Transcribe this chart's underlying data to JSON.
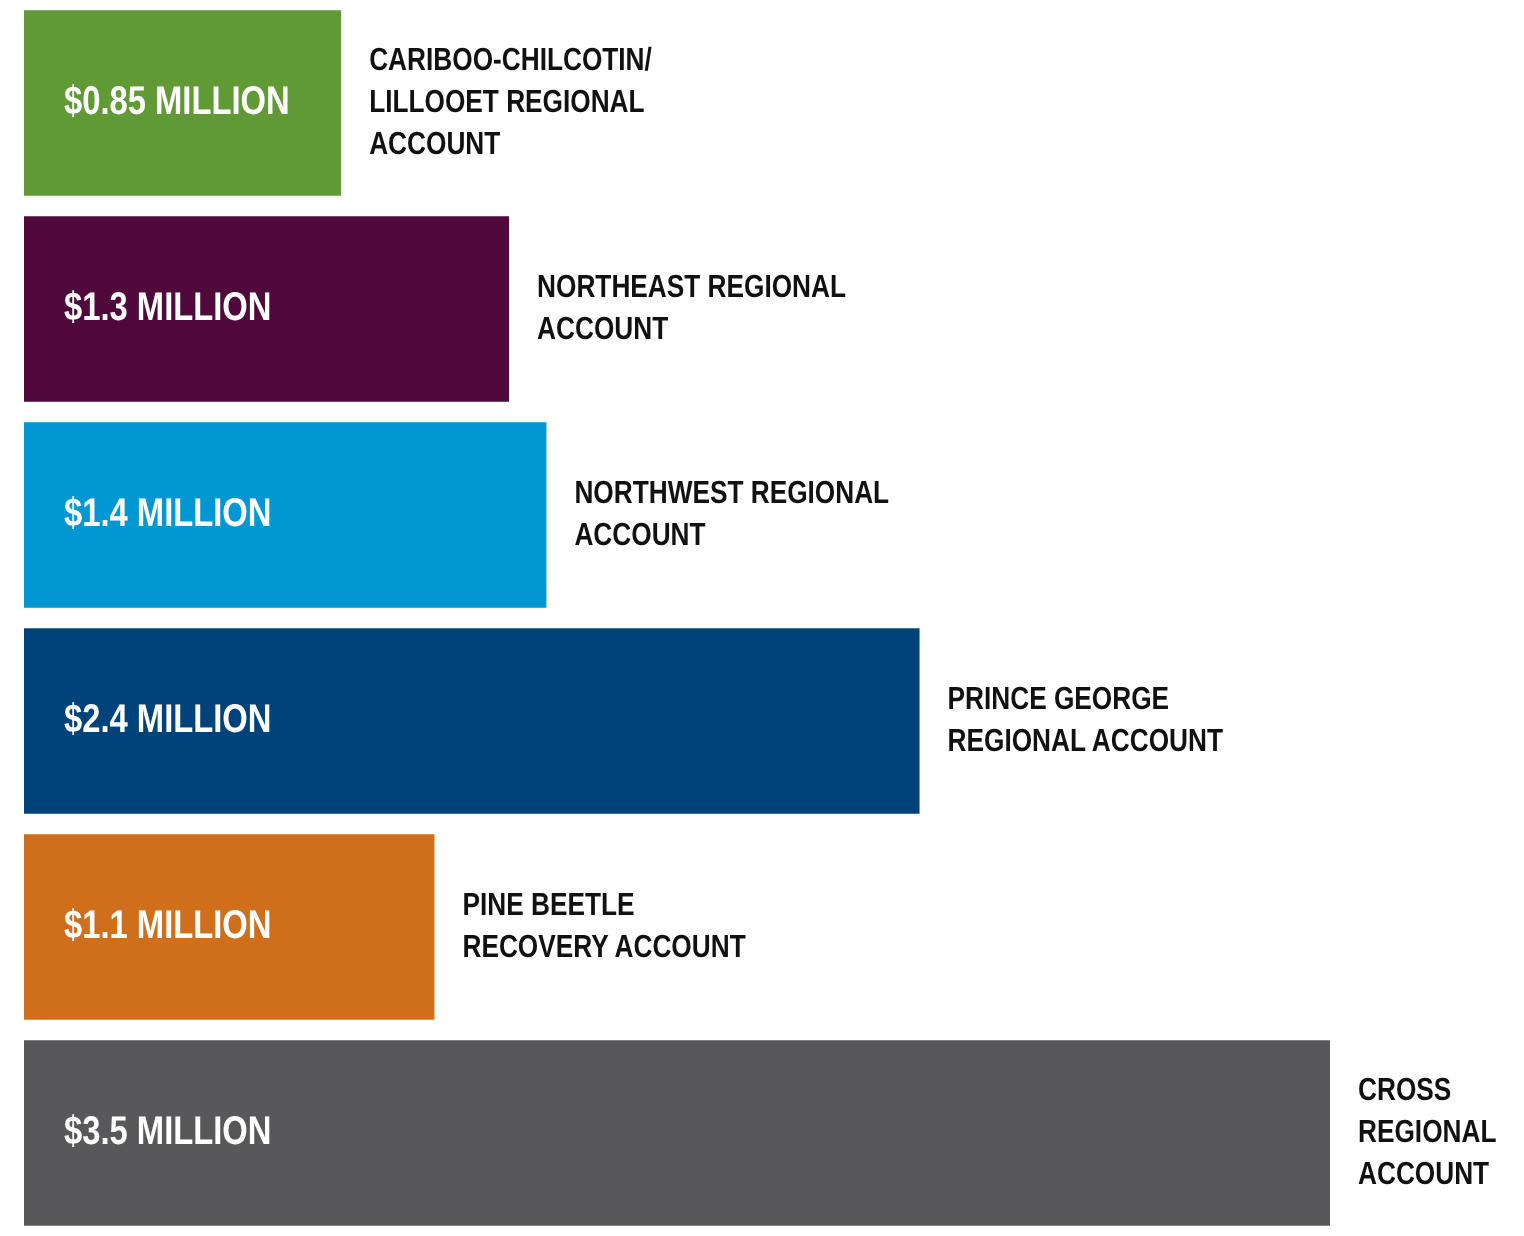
{
  "chart_data": {
    "type": "bar",
    "orientation": "horizontal",
    "categories": [
      "CARIBOO-CHILCOTIN/ LILLOOET REGIONAL ACCOUNT",
      "NORTHEAST REGIONAL ACCOUNT",
      "NORTHWEST REGIONAL ACCOUNT",
      "PRINCE GEORGE REGIONAL ACCOUNT",
      "PINE BEETLE RECOVERY ACCOUNT",
      "CROSS REGIONAL ACCOUNT"
    ],
    "values": [
      0.85,
      1.3,
      1.4,
      2.4,
      1.1,
      3.5
    ],
    "colors": [
      "#5f9a35",
      "#4f0a3b",
      "#0097d3",
      "#00437a",
      "#d06f1b",
      "#58585a"
    ],
    "value_labels": [
      "$0.85 MILLION",
      "$1.3 MILLION",
      "$1.4 MILLION",
      "$2.4 MILLION",
      "$1.1 MILLION",
      "$3.5 MILLION"
    ]
  }
}
